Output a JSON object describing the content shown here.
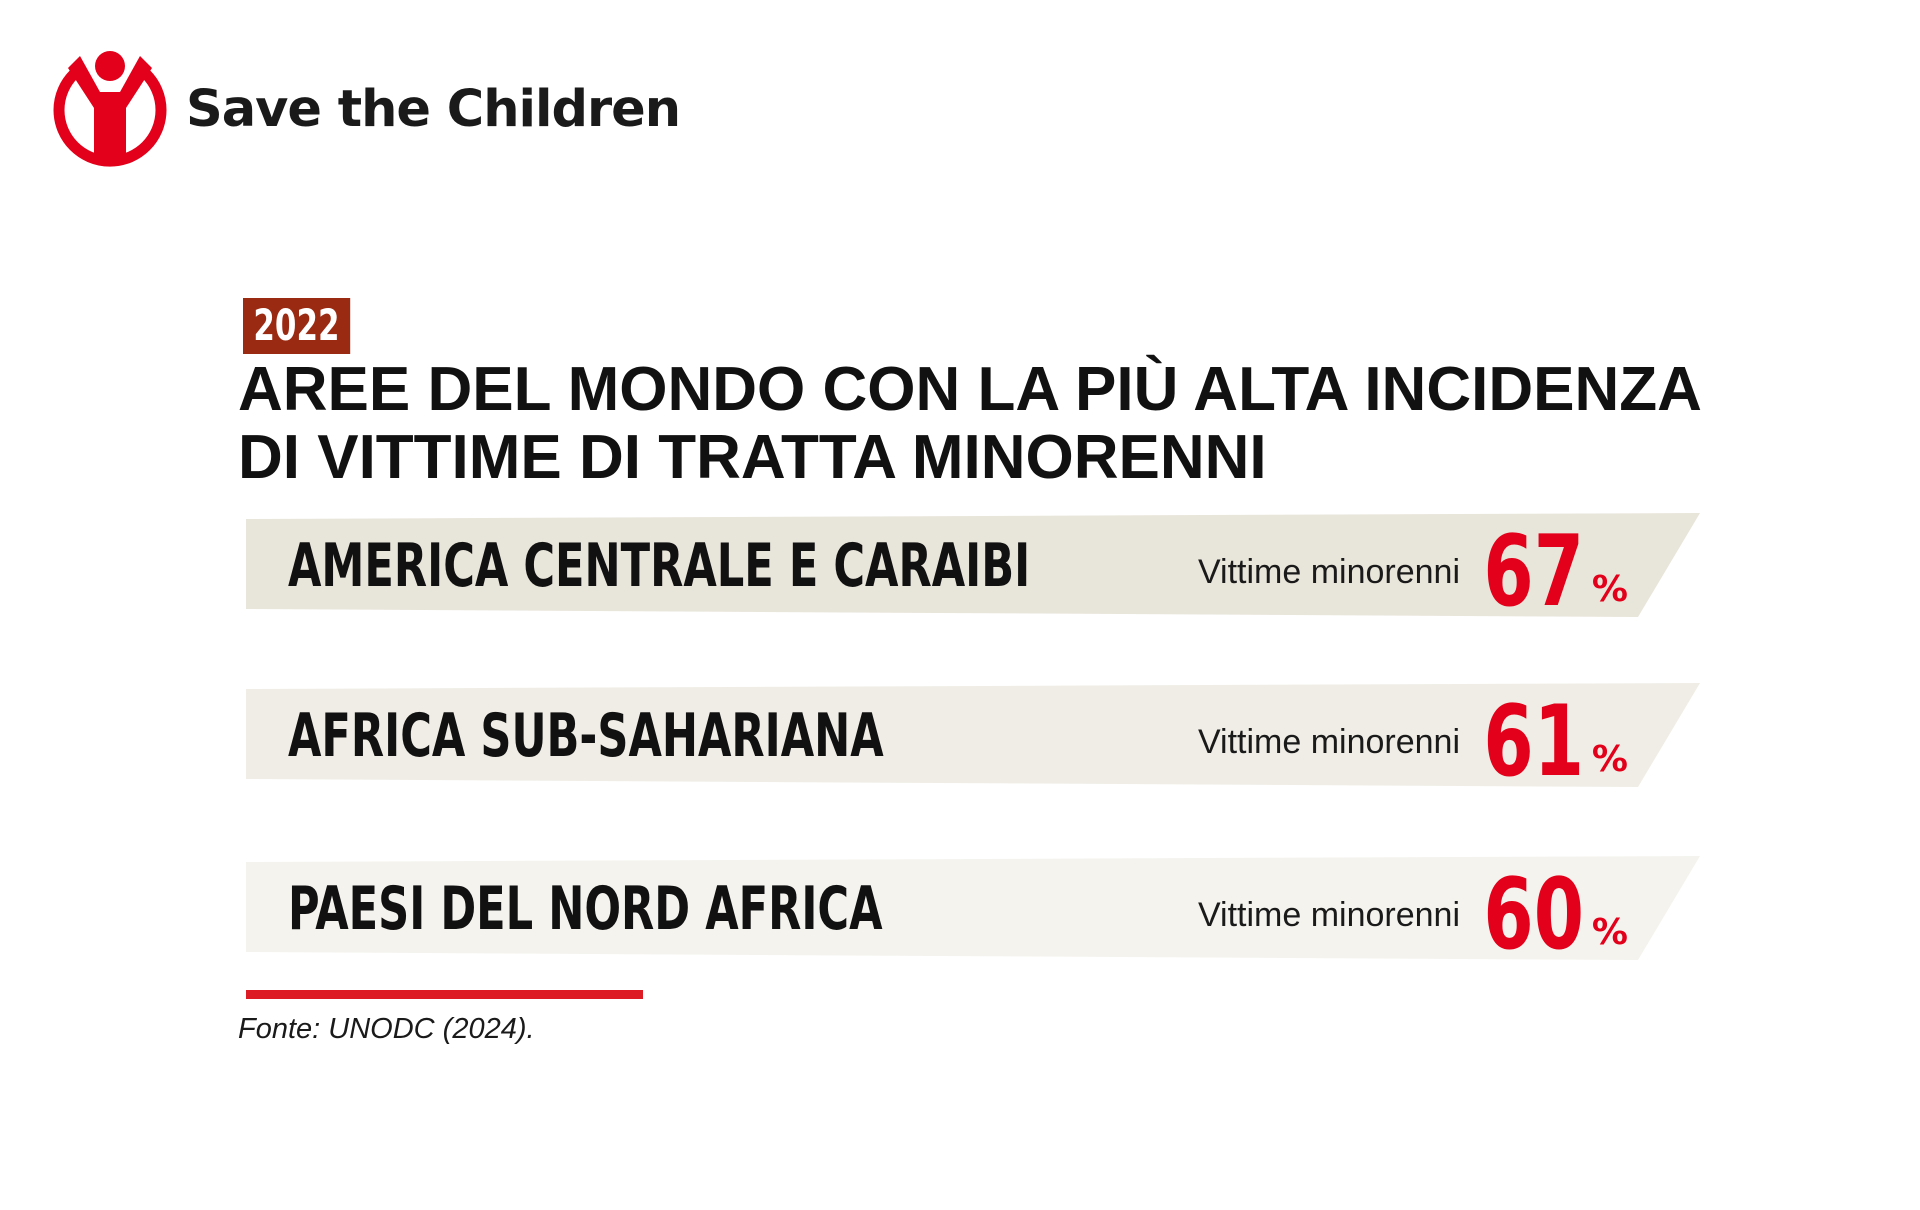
{
  "brand": {
    "name": "Save the Children",
    "logo_icon": "child-figure-logo-icon",
    "accent": "#e2001a"
  },
  "year_badge": "2022",
  "title_lines": [
    "AREE DEL MONDO CON LA PIÙ ALTA INCIDENZA",
    "DI VITTIME DI TRATTA MINORENNI"
  ],
  "chart_data": {
    "type": "bar",
    "categories": [
      "AMERICA CENTRALE E CARAIBI",
      "AFRICA SUB-SAHARIANA",
      "PAESI DEL NORD AFRICA"
    ],
    "series": [
      {
        "values": [
          67,
          61,
          60
        ]
      }
    ],
    "value_label": "Vittime minorenni",
    "unit": "%",
    "value_color": "#e2001a",
    "band_colors": [
      "#e8e5da",
      "#efede5",
      "#f4f3ee"
    ]
  },
  "source": "Fonte: UNODC (2024)."
}
